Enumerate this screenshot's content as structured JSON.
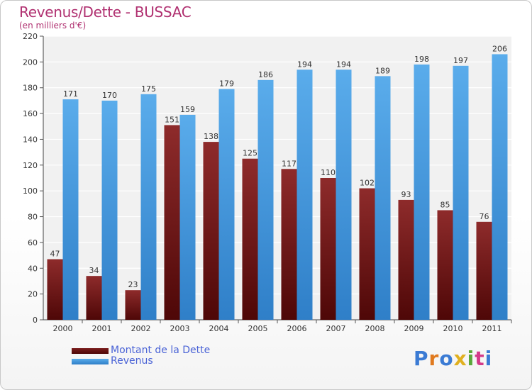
{
  "title": "Revenus/Dette - BUSSAC",
  "subtitle": "(en milliers d'€)",
  "logo_text": "Proxiti",
  "colors": {
    "dette": "#7a1c1c",
    "revenus": "#4a9fe0",
    "title": "#b03070",
    "legend_text": "#4a63d6"
  },
  "chart_data": {
    "type": "bar",
    "categories": [
      "2000",
      "2001",
      "2002",
      "2003",
      "2004",
      "2005",
      "2006",
      "2007",
      "2008",
      "2009",
      "2010",
      "2011"
    ],
    "series": [
      {
        "name": "Montant de la Dette",
        "values": [
          47,
          34,
          23,
          151,
          138,
          125,
          117,
          110,
          102,
          93,
          85,
          76
        ]
      },
      {
        "name": "Revenus",
        "values": [
          171,
          170,
          175,
          159,
          179,
          186,
          194,
          194,
          189,
          198,
          197,
          206
        ]
      }
    ],
    "ylim": [
      0,
      220
    ],
    "yticks": [
      0,
      20,
      40,
      60,
      80,
      100,
      120,
      140,
      160,
      180,
      200,
      220
    ],
    "grid": true,
    "legend_position": "bottom-left"
  }
}
